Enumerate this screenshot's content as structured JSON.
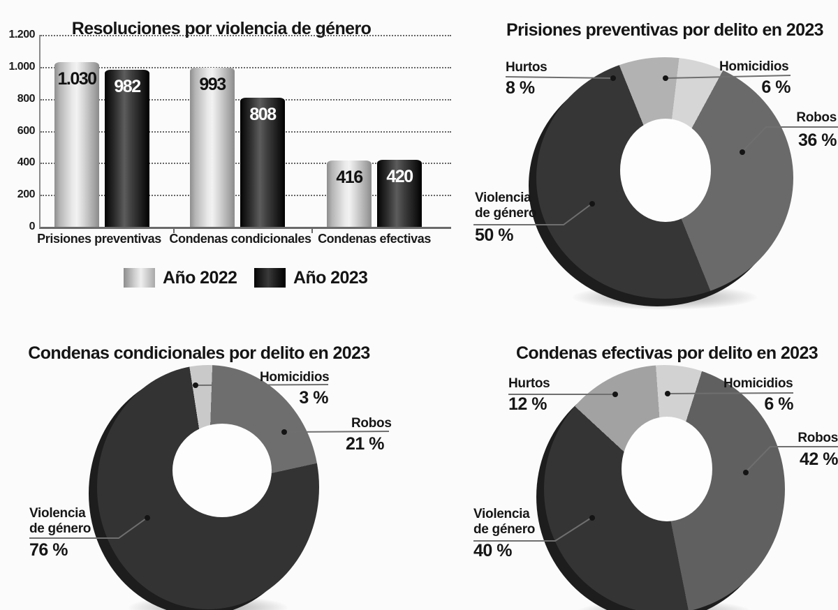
{
  "palette": {
    "background": "#fbfbfb",
    "hurtos": "#a8a8a8",
    "homicidios": "#cfcfcf",
    "robos": "#666666",
    "violencia_de_genero": "#343434",
    "serie_2022": "#c2c2c2",
    "serie_2023": "#1d1d1d"
  },
  "chart_data": [
    {
      "type": "bar",
      "title": "Resoluciones por violencia de género",
      "categories": [
        "Prisiones preventivas",
        "Condenas condicionales",
        "Condenas efectivas"
      ],
      "series": [
        {
          "name": "Año 2022",
          "color": "#c2c2c2",
          "values": [
            1030,
            993,
            416
          ],
          "value_labels": [
            "1.030",
            "993",
            "416"
          ]
        },
        {
          "name": "Año 2023",
          "color": "#1d1d1d",
          "values": [
            982,
            808,
            420
          ],
          "value_labels": [
            "982",
            "808",
            "420"
          ]
        }
      ],
      "ylim": [
        0,
        1200
      ],
      "y_ticks": [
        "1.200",
        "1.000",
        "800",
        "600",
        "400",
        "200",
        "0"
      ],
      "grid": "horizontal-dotted",
      "legend_position": "bottom"
    },
    {
      "type": "pie",
      "style": "donut-3d",
      "title": "Prisiones preventivas por delito en 2023",
      "start_angle_deg": -22,
      "slices": [
        {
          "label": "Hurtos",
          "pct": 8,
          "pct_label": "8 %",
          "color": "#b2b2b2"
        },
        {
          "label": "Homicidios",
          "pct": 6,
          "pct_label": "6 %",
          "color": "#d6d6d6"
        },
        {
          "label": "Robos",
          "pct": 36,
          "pct_label": "36 %",
          "color": "#6a6a6a"
        },
        {
          "label": "Violencia de género",
          "pct": 50,
          "pct_label": "50 %",
          "color": "#363636"
        }
      ]
    },
    {
      "type": "pie",
      "style": "donut-3d",
      "title": "Condenas condicionales por delito en 2023",
      "start_angle_deg": 2,
      "slices": [
        {
          "label": "Robos",
          "pct": 21,
          "pct_label": "21 %",
          "color": "#6e6e6e"
        },
        {
          "label": "Violencia de género",
          "pct": 76,
          "pct_label": "76 %",
          "color": "#333333"
        },
        {
          "label": "Homicidios",
          "pct": 3,
          "pct_label": "3 %",
          "color": "#c9c9c9"
        }
      ]
    },
    {
      "type": "pie",
      "style": "donut-3d",
      "title": "Condenas efectivas por delito en 2023",
      "start_angle_deg": -4,
      "slices": [
        {
          "label": "Homicidios",
          "pct": 6,
          "pct_label": "6 %",
          "color": "#d2d2d2"
        },
        {
          "label": "Robos",
          "pct": 42,
          "pct_label": "42 %",
          "color": "#606060"
        },
        {
          "label": "Violencia de género",
          "pct": 40,
          "pct_label": "40 %",
          "color": "#343434"
        },
        {
          "label": "Hurtos",
          "pct": 12,
          "pct_label": "12 %",
          "color": "#a2a2a2"
        }
      ]
    }
  ]
}
